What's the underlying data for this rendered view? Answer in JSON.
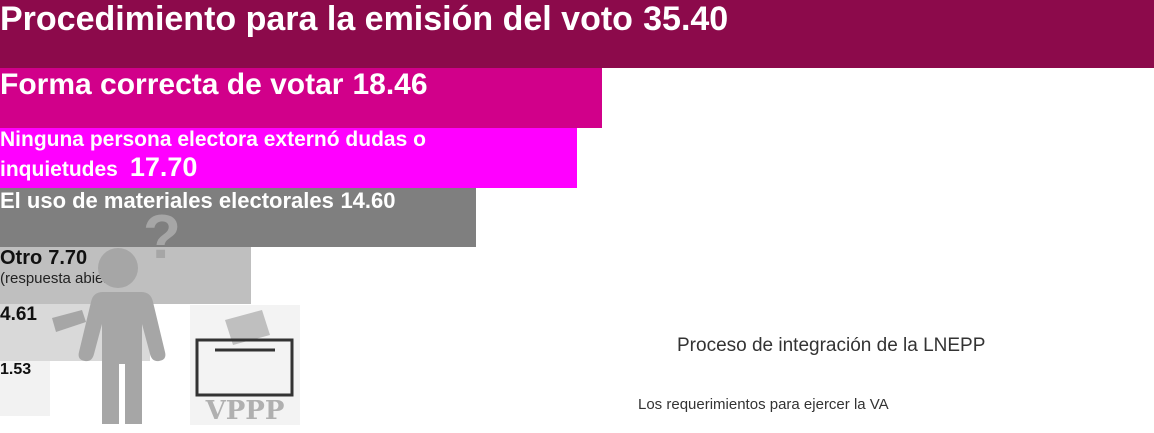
{
  "chart_data": {
    "type": "funnel",
    "categories": [
      "Procedimiento para la emisión del voto",
      "Forma correcta de votar",
      "Ninguna persona electora externó dudas o inquietudes",
      "El uso de materiales electorales",
      "Otro",
      "Proceso de integración de la LNEPP",
      "Los requerimientos para ejercer la VA"
    ],
    "values": [
      35.4,
      18.46,
      17.7,
      14.6,
      7.7,
      4.61,
      1.53
    ],
    "value_labels": [
      "35.40",
      "18.46",
      "17.70",
      "14.60",
      "7.70",
      "4.61",
      "1.53"
    ],
    "colors": [
      "#8c0a4b",
      "#d1008a",
      "#ff00ff",
      "#7f7f7f",
      "#bfbfbf",
      "#d9d9d9",
      "#f2f2f2"
    ],
    "xlim": [
      0,
      35.4
    ],
    "annotation": "(respuesta abierta)",
    "icon_label": "VPPP"
  }
}
